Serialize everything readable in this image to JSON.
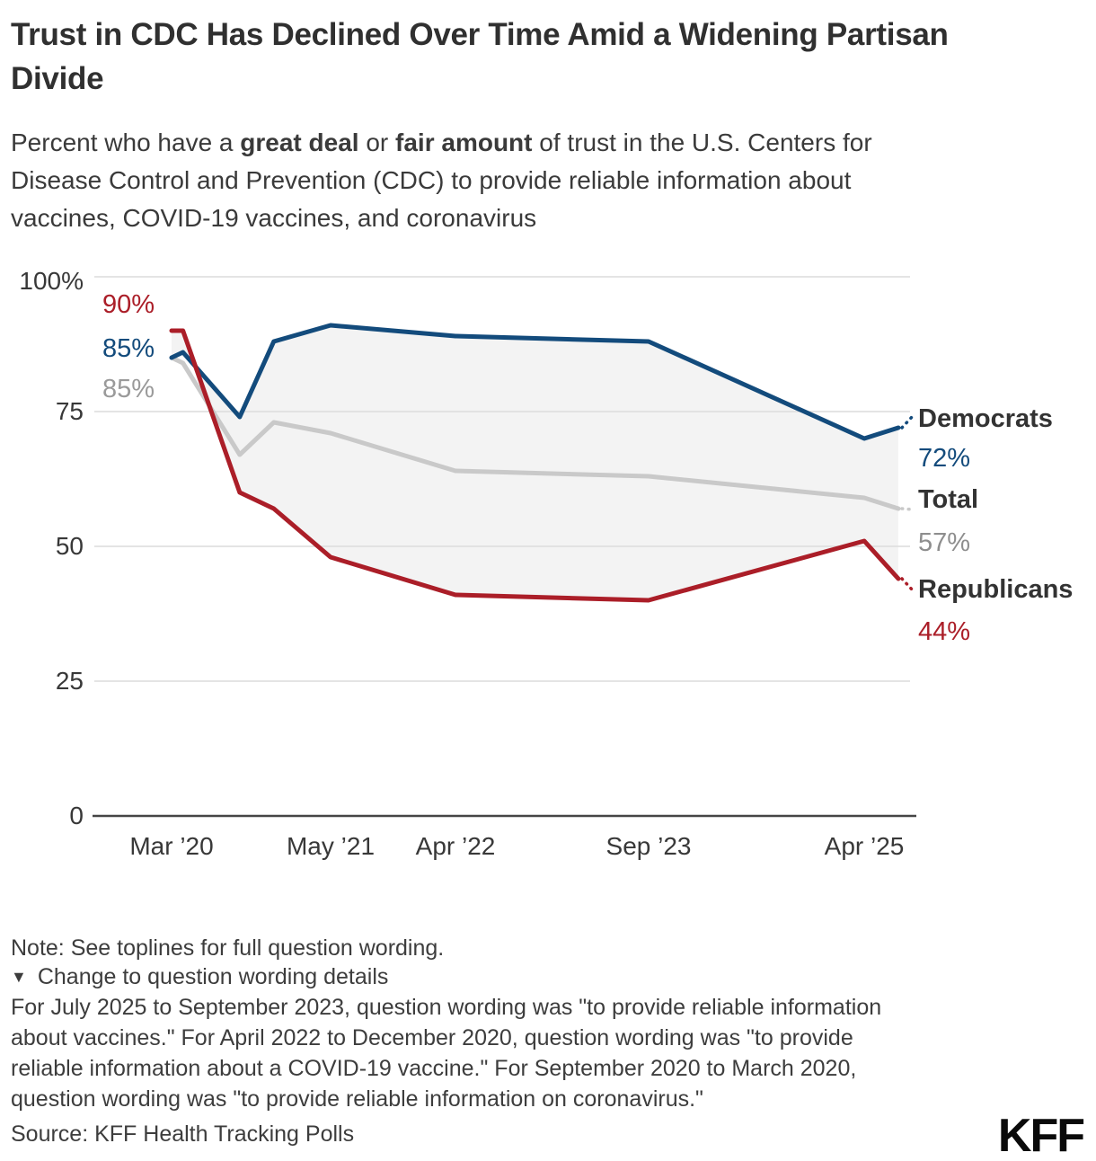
{
  "header": {
    "title": "Trust in CDC Has Declined Over Time Amid a Widening Partisan Divide",
    "subtitle": {
      "p1": "Percent who have a ",
      "b1": "great deal",
      "p2": " or ",
      "b2": "fair amount",
      "p3": " of trust in the U.S. Centers for Disease Control and Prevention (CDC) to provide reliable information about vaccines, COVID-19 vaccines, and coronavirus"
    }
  },
  "chart_data": {
    "type": "line",
    "title": "Trust in CDC Has Declined Over Time Amid a Widening Partisan Divide",
    "subtitle": "Percent who have a great deal or fair amount of trust in the U.S. Centers for Disease Control and Prevention (CDC) to provide reliable information about vaccines, COVID-19 vaccines, and coronavirus",
    "unit": "percent",
    "ylim": [
      0,
      100
    ],
    "grid": true,
    "legend_position": "right-inline",
    "band_fill": "#f3f3f3",
    "grid_color": "#dcdcdc",
    "axis_color": "#454545",
    "y_axis": {
      "ticks": [
        {
          "label": "100%",
          "value": 100
        },
        {
          "label": "75",
          "value": 75
        },
        {
          "label": "50",
          "value": 50
        },
        {
          "label": "25",
          "value": 25
        },
        {
          "label": "0",
          "value": 0
        }
      ]
    },
    "x_axis": {
      "tick_labels": [
        "Mar ’20",
        "May ’21",
        "Apr ’22",
        "Sep ’23",
        "Apr ’25"
      ],
      "tick_months": [
        0,
        14,
        25,
        42,
        61
      ]
    },
    "points": [
      {
        "date": "Mar ’20",
        "month": 0
      },
      {
        "date": "Apr ’20",
        "month": 1
      },
      {
        "date": "Sep ’20",
        "month": 6
      },
      {
        "date": "Dec ’20",
        "month": 9
      },
      {
        "date": "May ’21",
        "month": 14
      },
      {
        "date": "Apr ’22",
        "month": 25
      },
      {
        "date": "Sep ’23",
        "month": 42
      },
      {
        "date": "Apr ’25",
        "month": 61
      },
      {
        "date": "Jul ’25",
        "month": 64
      }
    ],
    "series": [
      {
        "name": "Democrats",
        "color": "#134b7c",
        "start_label": "85%",
        "end_label": "72%",
        "values": [
          85,
          86,
          74,
          88,
          91,
          89,
          88,
          70,
          72
        ]
      },
      {
        "name": "Total",
        "color": "#c9c9c9",
        "start_label": "85%",
        "end_label": "57%",
        "values": [
          85,
          84,
          67,
          73,
          71,
          64,
          63,
          59,
          57
        ]
      },
      {
        "name": "Republicans",
        "color": "#ab1e28",
        "start_label": "90%",
        "end_label": "44%",
        "values": [
          90,
          90,
          60,
          57,
          48,
          41,
          40,
          51,
          44
        ]
      }
    ]
  },
  "footer": {
    "note_line": "Note: See toplines for full question wording.",
    "toggle_icon": "▼",
    "toggle_label": "Change to question wording details",
    "wording_details": "For July 2025 to September 2023, question wording was \"to provide reliable information about vaccines.\" For April 2022 to December 2020, question wording was \"to provide reliable information about a COVID-19 vaccine.\" For September 2020 to March 2020, question wording was \"to provide reliable information on coronavirus.\"",
    "source": "Source: KFF Health Tracking Polls",
    "logo": "KFF"
  }
}
